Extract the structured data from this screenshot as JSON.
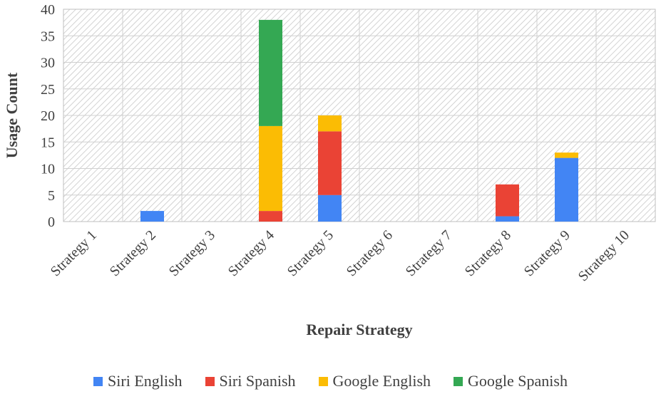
{
  "chart_data": {
    "type": "bar",
    "stacked": true,
    "categories": [
      "Strategy 1",
      "Strategy 2",
      "Strategy 3",
      "Strategy 4",
      "Strategy 5",
      "Strategy 6",
      "Strategy 7",
      "Strategy 8",
      "Strategy 9",
      "Strategy 10"
    ],
    "series": [
      {
        "name": "Siri English",
        "color": "#4285F4",
        "values": [
          0,
          2,
          0,
          0,
          5,
          0,
          0,
          1,
          12,
          0
        ]
      },
      {
        "name": "Siri Spanish",
        "color": "#EA4335",
        "values": [
          0,
          0,
          0,
          2,
          12,
          0,
          0,
          6,
          0,
          0
        ]
      },
      {
        "name": "Google English",
        "color": "#FBBC04",
        "values": [
          0,
          0,
          0,
          16,
          3,
          0,
          0,
          0,
          1,
          0
        ]
      },
      {
        "name": "Google Spanish",
        "color": "#34A853",
        "values": [
          0,
          0,
          0,
          20,
          0,
          0,
          0,
          0,
          0,
          0
        ]
      }
    ],
    "xlabel": "Repair Strategy",
    "ylabel": "Usage Count",
    "ylim": [
      0,
      40
    ],
    "yticks": [
      0,
      5,
      10,
      15,
      20,
      25,
      30,
      35,
      40
    ],
    "grid": true,
    "legend_position": "bottom"
  }
}
